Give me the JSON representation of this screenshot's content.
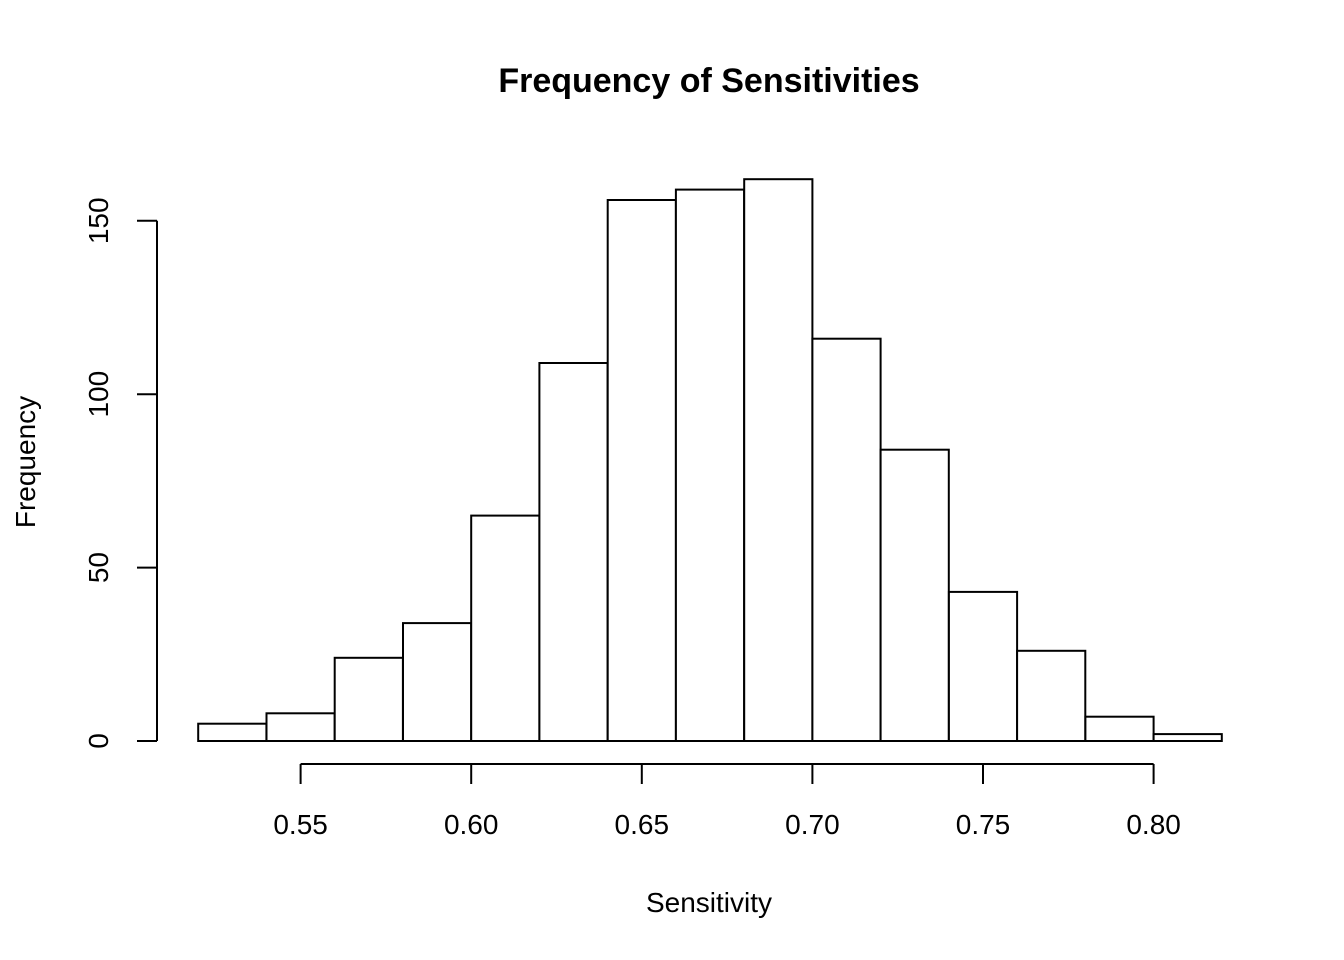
{
  "chart_data": {
    "type": "bar",
    "title": "Frequency of Sensitivities",
    "xlabel": "Sensitivity",
    "ylabel": "Frequency",
    "bin_edges": [
      0.52,
      0.54,
      0.56,
      0.58,
      0.6,
      0.62,
      0.64,
      0.66,
      0.68,
      0.7,
      0.72,
      0.74,
      0.76,
      0.78,
      0.8,
      0.82
    ],
    "values": [
      5,
      8,
      24,
      34,
      65,
      109,
      156,
      159,
      162,
      116,
      84,
      43,
      26,
      7,
      2
    ],
    "x_ticks": [
      0.55,
      0.6,
      0.65,
      0.7,
      0.75,
      0.8
    ],
    "x_tick_labels": [
      "0.55",
      "0.60",
      "0.65",
      "0.70",
      "0.75",
      "0.80"
    ],
    "y_ticks": [
      0,
      50,
      100,
      150
    ],
    "y_tick_labels": [
      "0",
      "50",
      "100",
      "150"
    ],
    "grid": false
  }
}
